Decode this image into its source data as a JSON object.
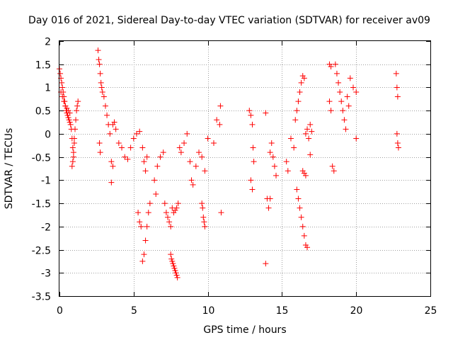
{
  "chart_data": {
    "type": "scatter",
    "title": "Day 016 of 2021, Sidereal Day-to-day VTEC variation (SDTVAR) for receiver av09",
    "xlabel": "GPS time / hours",
    "ylabel": "SDTVAR / TECUs",
    "xlim": [
      0,
      25
    ],
    "ylim": [
      -3.5,
      2
    ],
    "xticks": [
      0,
      5,
      10,
      15,
      20,
      25
    ],
    "yticks": [
      -3.5,
      -3,
      -2.5,
      -2,
      -1.5,
      -1,
      -0.5,
      0,
      0.5,
      1,
      1.5,
      2
    ],
    "xtick_labels": [
      "0",
      "5",
      "10",
      "15",
      "20",
      "25"
    ],
    "ytick_labels": [
      "-3.5",
      "-3",
      "-2.5",
      "-2",
      "-1.5",
      "-1",
      "-0.5",
      "0",
      "0.5",
      "1",
      "1.5",
      "2"
    ],
    "grid": true,
    "marker": "+",
    "color": "#ff0000",
    "series": [
      {
        "name": "SDTVAR",
        "x": [
          0.0,
          0.05,
          0.1,
          0.15,
          0.2,
          0.25,
          0.3,
          0.35,
          0.4,
          0.45,
          0.5,
          0.55,
          0.6,
          0.65,
          0.7,
          0.75,
          0.8,
          0.85,
          0.9,
          0.95,
          1.0,
          1.05,
          1.1,
          1.15,
          1.2,
          1.25,
          0.1,
          0.2,
          0.3,
          0.4,
          0.5,
          0.6,
          0.7,
          0.85,
          0.9,
          0.95,
          1.0,
          2.6,
          2.65,
          2.7,
          2.75,
          2.8,
          2.85,
          2.9,
          3.0,
          3.1,
          3.2,
          3.3,
          3.4,
          2.7,
          2.75,
          3.5,
          3.6,
          3.7,
          3.8,
          4.0,
          4.2,
          4.4,
          4.6,
          4.8,
          5.0,
          5.2,
          5.4,
          3.5,
          3.6,
          5.3,
          5.4,
          5.5,
          5.6,
          5.7,
          5.8,
          5.9,
          6.0,
          6.1,
          5.6,
          5.7,
          5.8,
          5.9,
          6.4,
          6.5,
          6.6,
          6.8,
          7.0,
          7.1,
          7.2,
          7.3,
          7.4,
          7.5,
          7.6,
          7.7,
          7.8,
          7.9,
          8.0,
          7.5,
          7.55,
          7.6,
          7.65,
          7.7,
          7.75,
          7.8,
          7.85,
          7.9,
          7.95,
          8.1,
          8.2,
          8.4,
          8.6,
          8.8,
          8.9,
          9.0,
          9.2,
          9.4,
          9.6,
          9.8,
          10.0,
          9.6,
          9.65,
          9.7,
          9.75,
          9.8,
          10.4,
          10.6,
          10.8,
          10.85,
          10.9,
          12.8,
          12.9,
          13.0,
          13.05,
          13.1,
          12.9,
          13.0,
          13.9,
          14.0,
          14.1,
          14.2,
          14.3,
          14.4,
          14.5,
          14.6,
          14.2,
          15.3,
          15.4,
          15.6,
          15.8,
          15.9,
          16.0,
          16.1,
          16.2,
          16.3,
          16.4,
          16.5,
          16.6,
          16.7,
          16.8,
          16.9,
          17.0,
          16.0,
          16.1,
          16.2,
          16.3,
          16.4,
          16.5,
          16.6,
          16.7,
          16.4,
          16.5,
          16.6,
          18.2,
          18.3,
          18.4,
          18.5,
          18.2,
          18.3,
          18.6,
          18.7,
          18.8,
          18.9,
          19.0,
          19.1,
          19.2,
          19.3,
          19.4,
          19.5,
          19.6,
          19.8,
          20.0,
          20.0,
          22.7,
          22.75,
          22.8,
          22.75,
          22.8,
          22.85,
          13.9,
          16.9
        ],
        "y": [
          1.4,
          1.3,
          1.2,
          1.1,
          1.0,
          0.9,
          0.8,
          0.7,
          0.6,
          0.5,
          0.45,
          0.4,
          0.35,
          0.3,
          0.25,
          0.2,
          0.1,
          -0.1,
          -0.3,
          -0.5,
          -0.2,
          0.1,
          0.3,
          0.5,
          0.6,
          0.7,
          0.9,
          0.8,
          0.7,
          0.6,
          0.55,
          0.5,
          0.45,
          -0.7,
          -0.6,
          -0.4,
          -0.1,
          1.8,
          1.6,
          1.5,
          1.3,
          1.1,
          1.0,
          0.9,
          0.8,
          0.6,
          0.4,
          0.2,
          0.0,
          -0.2,
          -0.4,
          -1.05,
          0.2,
          0.25,
          0.1,
          -0.2,
          -0.3,
          -0.5,
          -0.55,
          -0.3,
          -0.1,
          0.0,
          0.05,
          -0.6,
          -0.7,
          -1.7,
          -1.9,
          -2.0,
          -2.75,
          -2.6,
          -2.3,
          -2.0,
          -1.7,
          -1.5,
          -0.3,
          -0.6,
          -0.8,
          -0.5,
          -1.0,
          -1.3,
          -0.7,
          -0.5,
          -0.4,
          -1.5,
          -1.7,
          -1.8,
          -1.9,
          -2.0,
          -1.6,
          -1.7,
          -1.65,
          -1.6,
          -1.5,
          -2.6,
          -2.7,
          -2.75,
          -2.8,
          -2.85,
          -2.9,
          -2.95,
          -3.0,
          -3.05,
          -3.1,
          -0.3,
          -0.4,
          -0.2,
          0.0,
          -0.6,
          -1.0,
          -1.1,
          -0.7,
          -0.4,
          -0.5,
          -0.8,
          -0.1,
          -1.5,
          -1.6,
          -1.8,
          -1.9,
          -2.0,
          -0.2,
          0.3,
          0.2,
          0.6,
          -1.7,
          0.5,
          0.4,
          0.2,
          -0.3,
          -0.6,
          -1.0,
          -1.2,
          0.45,
          -1.4,
          -1.6,
          -0.4,
          -0.2,
          -0.5,
          -0.7,
          -0.9,
          -1.4,
          -0.6,
          -0.8,
          -0.1,
          -0.3,
          0.3,
          0.5,
          0.7,
          0.9,
          1.1,
          1.25,
          1.2,
          0.0,
          0.1,
          -0.1,
          0.2,
          0.05,
          -1.2,
          -1.4,
          -1.6,
          -1.8,
          -2.0,
          -2.2,
          -2.4,
          -2.45,
          -0.8,
          -0.85,
          -0.9,
          1.5,
          1.45,
          -0.7,
          -0.8,
          0.7,
          0.5,
          1.5,
          1.3,
          1.1,
          0.9,
          0.7,
          0.5,
          0.3,
          0.1,
          0.8,
          0.6,
          1.2,
          1.0,
          -0.1,
          0.9,
          1.3,
          1.0,
          0.8,
          0.0,
          -0.2,
          -0.3,
          -2.8,
          -0.45
        ]
      }
    ]
  }
}
